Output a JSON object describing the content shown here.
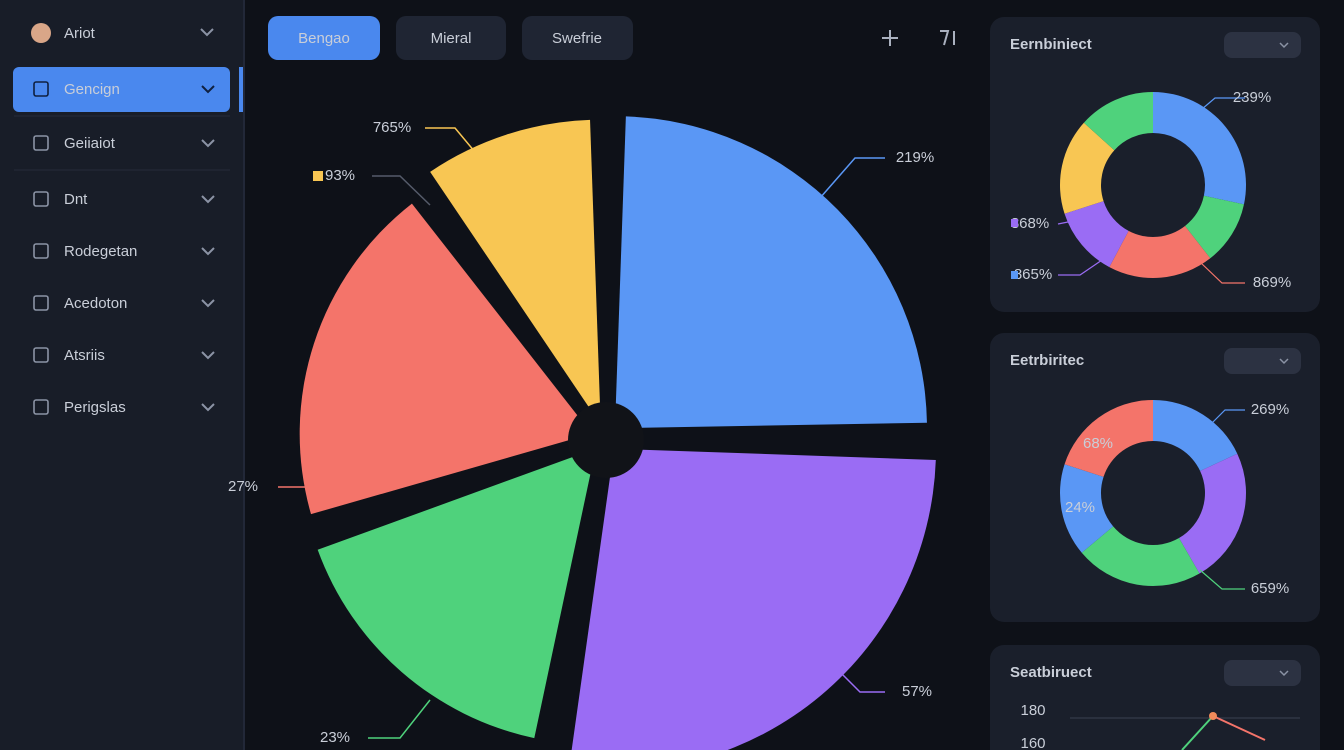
{
  "sidebar": {
    "user": "Ariot",
    "items": [
      "Gencign",
      "Geiiaiot",
      "Dnt",
      "Rodegetan",
      "Acedoton",
      "Atsriis",
      "Perigslas"
    ]
  },
  "tabs": [
    "Bengao",
    "Mieral",
    "Swefrie"
  ],
  "main_chart": {
    "labels": [
      "765%",
      "93%",
      "219%",
      "27%",
      "57%",
      "23%"
    ]
  },
  "panels": [
    {
      "title": "Eernbiniect",
      "labels": [
        "239%",
        "868%",
        "865%",
        "869%"
      ]
    },
    {
      "title": "Eetrbiritec",
      "labels": [
        "269%",
        "68%",
        "24%",
        "659%"
      ]
    },
    {
      "title": "Seatbiruect",
      "axis": [
        "180",
        "160"
      ]
    }
  ]
}
